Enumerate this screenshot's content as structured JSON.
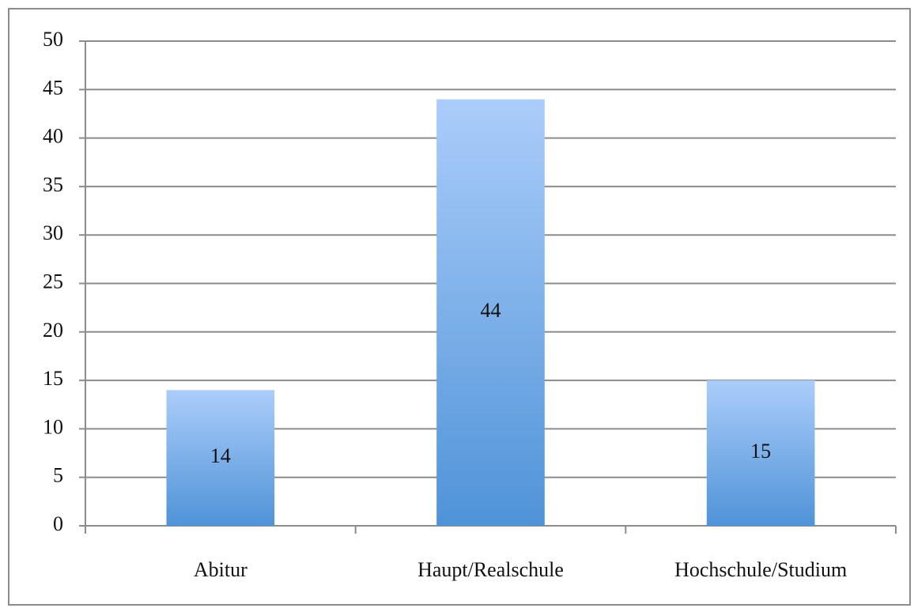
{
  "chart_data": {
    "type": "bar",
    "categories": [
      "Abitur",
      "Haupt/Realschule",
      "Hochschule/Studium"
    ],
    "values": [
      14,
      44,
      15
    ],
    "color": "#5b9ee0",
    "ylim": [
      0,
      50
    ],
    "yticks": [
      0,
      5,
      10,
      15,
      20,
      25,
      30,
      35,
      40,
      45,
      50
    ],
    "grid": true
  }
}
